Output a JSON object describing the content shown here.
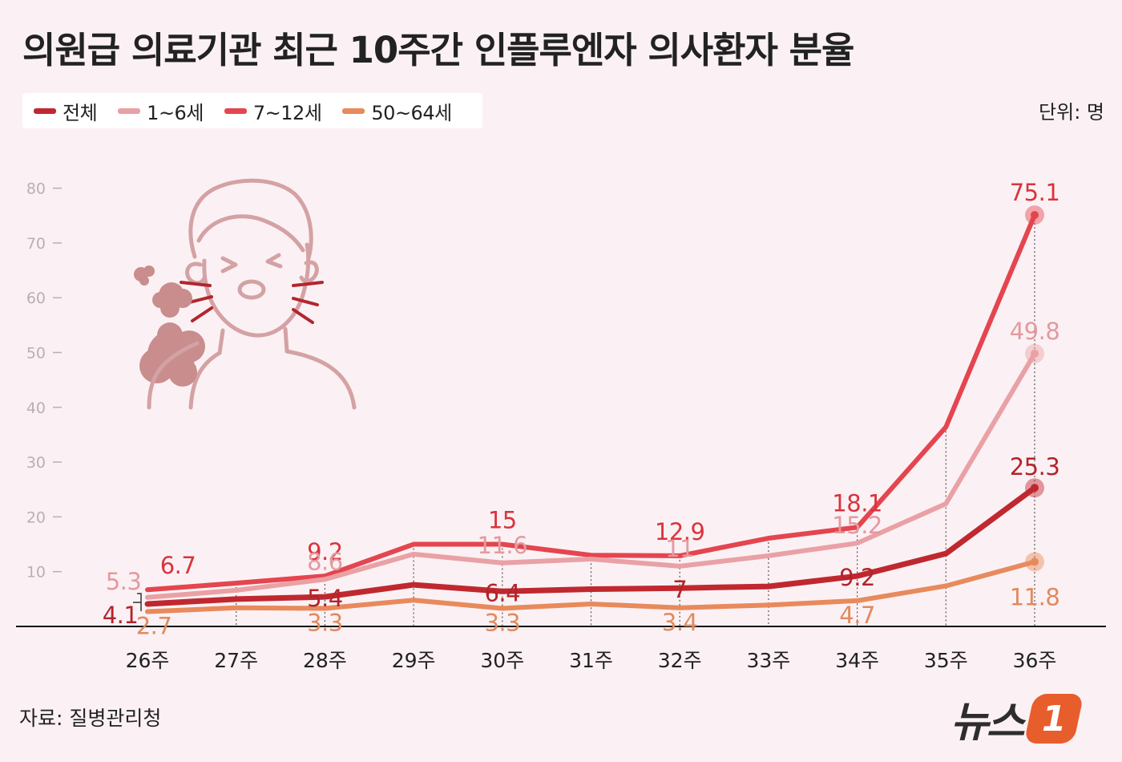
{
  "title": "의원급 의료기관 최근 10주간 인플루엔자 의사환자 분율",
  "unit": "단위: 명",
  "source": "자료: 질병관리청",
  "logo": {
    "text": "뉴스",
    "badge": "1"
  },
  "legend": [
    {
      "label": "전체",
      "color": "#c0282f"
    },
    {
      "label": "1~6세",
      "color": "#e9a1a5"
    },
    {
      "label": "7~12세",
      "color": "#e4454e"
    },
    {
      "label": "50~64세",
      "color": "#e88a5c"
    }
  ],
  "illustration": {
    "icon": "sneezing-person-icon"
  },
  "chart_data": {
    "type": "line",
    "categories": [
      "26주",
      "27주",
      "28주",
      "29주",
      "30주",
      "31주",
      "32주",
      "33주",
      "34주",
      "35주",
      "36주"
    ],
    "yticks": [
      10,
      20,
      30,
      40,
      50,
      60,
      70,
      80
    ],
    "ylim": [
      0,
      80
    ],
    "series": [
      {
        "name": "7~12세",
        "color": "#e4454e",
        "values": [
          6.7,
          7.9,
          9.2,
          15,
          15,
          13,
          12.9,
          16.1,
          18.1,
          36.4,
          75.1
        ]
      },
      {
        "name": "1~6세",
        "color": "#e9a1a5",
        "values": [
          5.3,
          6.6,
          8.6,
          13.2,
          11.6,
          12.3,
          11,
          12.9,
          15.2,
          22.4,
          49.8
        ]
      },
      {
        "name": "전체",
        "color": "#c0282f",
        "values": [
          4.1,
          5,
          5.4,
          7.6,
          6.4,
          6.8,
          7,
          7.3,
          9.2,
          13.3,
          25.3
        ]
      },
      {
        "name": "50~64세",
        "color": "#e88a5c",
        "values": [
          2.7,
          3.4,
          3.3,
          4.8,
          3.3,
          4.1,
          3.4,
          3.9,
          4.7,
          7.4,
          11.8
        ]
      }
    ],
    "labels": [
      {
        "text": "6.7",
        "series": "7~12세",
        "i": 0,
        "color": "#d9343d"
      },
      {
        "text": "9.2",
        "series": "7~12세",
        "i": 2,
        "color": "#d9343d"
      },
      {
        "text": "15",
        "series": "7~12세",
        "i": 4,
        "color": "#d9343d"
      },
      {
        "text": "12.9",
        "series": "7~12세",
        "i": 6,
        "color": "#d9343d"
      },
      {
        "text": "18.1",
        "series": "7~12세",
        "i": 8,
        "color": "#d9343d"
      },
      {
        "text": "75.1",
        "series": "7~12세",
        "i": 10,
        "color": "#d9343d"
      },
      {
        "text": "5.3",
        "series": "1~6세",
        "i": 0,
        "color": "#e39a9f"
      },
      {
        "text": "8.6",
        "series": "1~6세",
        "i": 2,
        "color": "#e39a9f"
      },
      {
        "text": "11.6",
        "series": "1~6세",
        "i": 4,
        "color": "#e39a9f"
      },
      {
        "text": "11",
        "series": "1~6세",
        "i": 6,
        "color": "#e39a9f"
      },
      {
        "text": "15.2",
        "series": "1~6세",
        "i": 8,
        "color": "#e39a9f"
      },
      {
        "text": "49.8",
        "series": "1~6세",
        "i": 10,
        "color": "#e39a9f"
      },
      {
        "text": "4.1",
        "series": "전체",
        "i": 0,
        "color": "#b3232a"
      },
      {
        "text": "5.4",
        "series": "전체",
        "i": 2,
        "color": "#b3232a"
      },
      {
        "text": "6.4",
        "series": "전체",
        "i": 4,
        "color": "#b3232a"
      },
      {
        "text": "7",
        "series": "전체",
        "i": 6,
        "color": "#b3232a"
      },
      {
        "text": "9.2",
        "series": "전체",
        "i": 8,
        "color": "#b3232a"
      },
      {
        "text": "25.3",
        "series": "전체",
        "i": 10,
        "color": "#b3232a"
      },
      {
        "text": "2.7",
        "series": "50~64세",
        "i": 0,
        "color": "#e08a5e"
      },
      {
        "text": "3.3",
        "series": "50~64세",
        "i": 2,
        "color": "#e08a5e"
      },
      {
        "text": "3.3",
        "series": "50~64세",
        "i": 4,
        "color": "#e08a5e"
      },
      {
        "text": "3.4",
        "series": "50~64세",
        "i": 6,
        "color": "#e08a5e"
      },
      {
        "text": "4.7",
        "series": "50~64세",
        "i": 8,
        "color": "#e08a5e"
      },
      {
        "text": "11.8",
        "series": "50~64세",
        "i": 10,
        "color": "#e08a5e"
      }
    ]
  }
}
